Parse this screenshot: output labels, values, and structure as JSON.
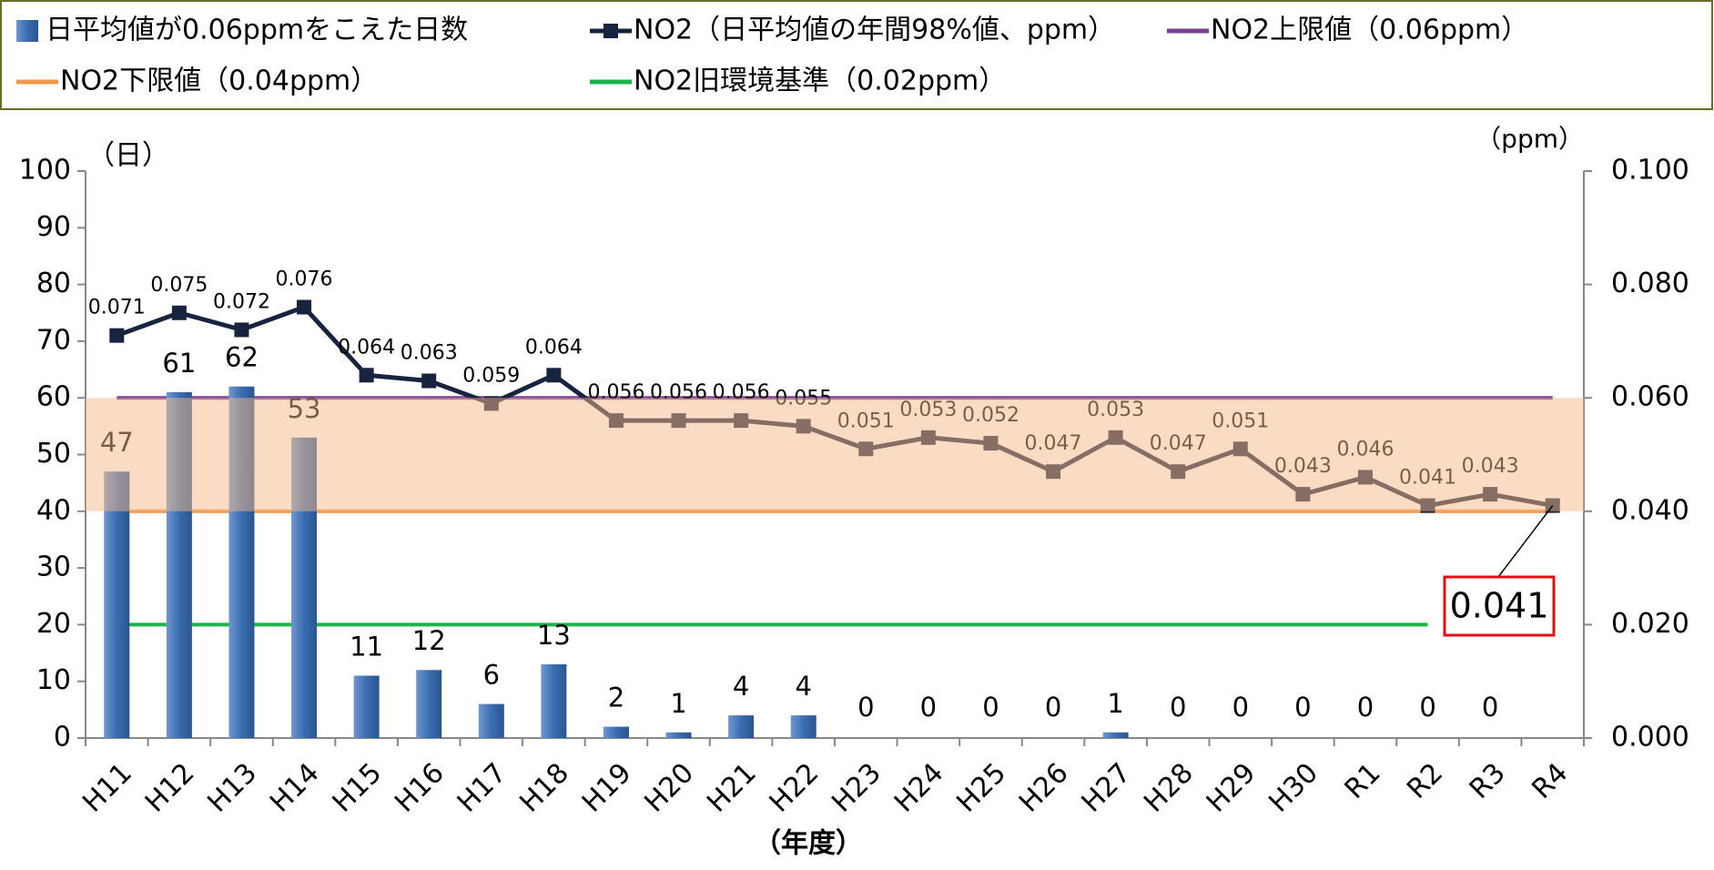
{
  "chart_data": {
    "type": "bar_line",
    "categories": [
      "H11",
      "H12",
      "H13",
      "H14",
      "H15",
      "H16",
      "H17",
      "H18",
      "H19",
      "H20",
      "H21",
      "H22",
      "H23",
      "H24",
      "H25",
      "H26",
      "H27",
      "H28",
      "H29",
      "H30",
      "R1",
      "R2",
      "R3",
      "R4"
    ],
    "series": [
      {
        "name": "日平均値が0.06ppmをこえた日数",
        "color": "#3a6db0",
        "type": "bar",
        "values": [
          47,
          61,
          62,
          53,
          11,
          12,
          6,
          13,
          2,
          1,
          4,
          4,
          0,
          0,
          0,
          0,
          1,
          0,
          0,
          0,
          0,
          0,
          0,
          null
        ]
      },
      {
        "name": "NO2（日平均値の年間98%値、ppm）",
        "color": "#17233f",
        "type": "line",
        "axis": "y2",
        "values": [
          0.071,
          0.075,
          0.072,
          0.076,
          0.064,
          0.063,
          0.059,
          0.064,
          0.056,
          0.056,
          0.056,
          0.055,
          0.051,
          0.053,
          0.052,
          0.047,
          0.053,
          0.047,
          0.051,
          0.043,
          0.046,
          0.041,
          0.043,
          0.041
        ]
      }
    ],
    "reference_lines": [
      {
        "name": "NO2上限値（0.06ppm）",
        "color": "#7b3f98",
        "value": 0.06
      },
      {
        "name": "NO2下限値（0.04ppm）",
        "color": "#f29a4a",
        "value": 0.04
      },
      {
        "name": "NO2旧環境基準（0.02ppm）",
        "color": "#1db34a",
        "value": 0.02
      }
    ],
    "band": [
      0.04,
      0.06
    ],
    "ylabel": "（日）",
    "y2label": "（ppm）",
    "xlabel": "（年度）",
    "callout": "0.041",
    "ylim": [
      0,
      100
    ],
    "yticks": [
      0,
      10,
      20,
      30,
      40,
      50,
      60,
      70,
      80,
      90,
      100
    ],
    "y2lim": [
      0,
      0.1
    ],
    "y2ticks": [
      {
        "value": 0,
        "label": "0.000"
      },
      {
        "value": 0.02,
        "label": "0.020"
      },
      {
        "value": 0.04,
        "label": "0.040"
      },
      {
        "value": 0.06,
        "label": "0.060"
      },
      {
        "value": 0.08,
        "label": "0.080"
      },
      {
        "value": 0.1,
        "label": "0.100"
      }
    ]
  }
}
